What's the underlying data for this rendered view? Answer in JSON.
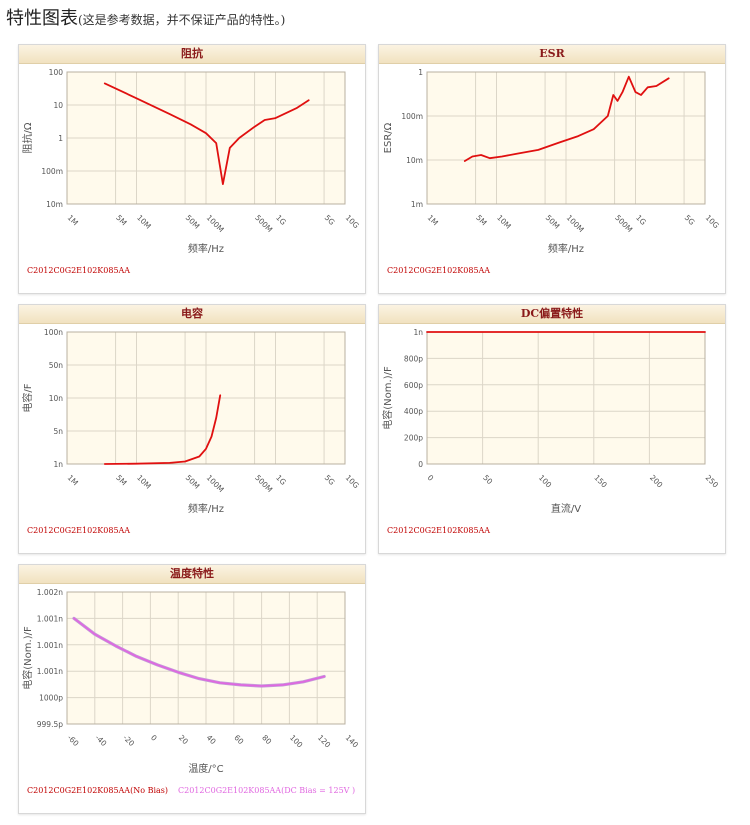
{
  "page": {
    "title": "特性图表",
    "subtitle": "(这是参考数据，并不保证产品的特性。)"
  },
  "colors": {
    "curve": "#e01010",
    "curve2": "#e066e0",
    "plot_bg": "#fffaec",
    "grid": "#dcd6c8",
    "header_text": "#8a1a1a"
  },
  "panels": [
    {
      "title": "阻抗",
      "part": "C2012C0G2E102K085AA"
    },
    {
      "title": "ESR",
      "part": "C2012C0G2E102K085AA"
    },
    {
      "title": "电容",
      "part": "C2012C0G2E102K085AA"
    },
    {
      "title": "DC偏置特性",
      "part": "C2012C0G2E102K085AA"
    },
    {
      "title": "温度特性",
      "part": "C2012C0G2E102K085AA(No Bias)",
      "part2": "C2012C0G2E102K085AA(DC Bias = 125V )"
    }
  ],
  "chart_data": [
    {
      "type": "line",
      "title": "阻抗",
      "xlabel": "频率/Hz",
      "ylabel": "阻抗/Ω",
      "x_scale": "log",
      "y_scale": "log",
      "xlim": [
        1000000,
        10000000000
      ],
      "ylim": [
        0.01,
        100
      ],
      "x_ticks": [
        "1M",
        "5M",
        "10M",
        "50M",
        "100M",
        "500M",
        "1G",
        "5G",
        "10G"
      ],
      "y_ticks": [
        "100",
        "10",
        "1",
        "100m",
        "10m"
      ],
      "series": [
        {
          "x": [
            3500000.0,
            10000000.0,
            30000000.0,
            60000000.0,
            100000000.0,
            140000000.0,
            175000000.0,
            220000000.0,
            300000000.0,
            500000000.0,
            700000000.0,
            1000000000.0,
            2000000000.0,
            3000000000.0
          ],
          "y": [
            45,
            16,
            5.3,
            2.6,
            1.4,
            0.7,
            0.04,
            0.5,
            1.0,
            2.2,
            3.5,
            4.0,
            8.0,
            14
          ]
        }
      ]
    },
    {
      "type": "line",
      "title": "ESR",
      "xlabel": "频率/Hz",
      "ylabel": "ESR/Ω",
      "x_scale": "log",
      "y_scale": "log",
      "xlim": [
        1000000,
        10000000000
      ],
      "ylim": [
        0.001,
        1
      ],
      "x_ticks": [
        "1M",
        "5M",
        "10M",
        "50M",
        "100M",
        "500M",
        "1G",
        "5G",
        "10G"
      ],
      "y_ticks": [
        "1",
        "100m",
        "10m",
        "1m"
      ],
      "series": [
        {
          "x": [
            3500000.0,
            4500000.0,
            6000000.0,
            8000000.0,
            12000000.0,
            20000000.0,
            40000000.0,
            80000000.0,
            150000000.0,
            250000000.0,
            400000000.0,
            480000000.0,
            550000000.0,
            650000000.0,
            800000000.0,
            1000000000.0,
            1200000000.0,
            1500000000.0,
            2000000000.0,
            3000000000.0
          ],
          "y": [
            0.0095,
            0.012,
            0.013,
            0.011,
            0.012,
            0.014,
            0.017,
            0.025,
            0.035,
            0.05,
            0.1,
            0.3,
            0.22,
            0.35,
            0.78,
            0.35,
            0.3,
            0.45,
            0.48,
            0.72
          ]
        }
      ]
    },
    {
      "type": "line",
      "title": "电容",
      "xlabel": "频率/Hz",
      "ylabel": "电容/F",
      "x_scale": "log",
      "y_scale": "log",
      "xlim": [
        1000000,
        10000000000
      ],
      "ylim": [
        1e-09,
        1e-07
      ],
      "x_ticks": [
        "1M",
        "5M",
        "10M",
        "50M",
        "100M",
        "500M",
        "1G",
        "5G",
        "10G"
      ],
      "y_ticks": [
        "100n",
        "50n",
        "10n",
        "5n",
        "1n"
      ],
      "series": [
        {
          "x": [
            3500000.0,
            10000000.0,
            30000000.0,
            50000000.0,
            80000000.0,
            100000000.0,
            120000000.0,
            140000000.0,
            160000000.0
          ],
          "y": [
            1e-09,
            1.01e-09,
            1.04e-09,
            1.09e-09,
            1.3e-09,
            1.7e-09,
            2.6e-09,
            5e-09,
            1.1e-08
          ]
        }
      ]
    },
    {
      "type": "line",
      "title": "DC偏置特性",
      "xlabel": "直流/V",
      "ylabel": "电容(Nom.)/F",
      "xlim": [
        0,
        250
      ],
      "ylim": [
        0,
        1e-09
      ],
      "x_ticks": [
        "0",
        "50",
        "100",
        "150",
        "200",
        "250"
      ],
      "y_ticks": [
        "1n",
        "800p",
        "600p",
        "400p",
        "200p",
        "0"
      ],
      "series": [
        {
          "x": [
            0,
            250
          ],
          "y": [
            1e-09,
            1e-09
          ]
        }
      ]
    },
    {
      "type": "line",
      "title": "温度特性",
      "xlabel": "温度/°C",
      "ylabel": "电容(Nom.)/F",
      "xlim": [
        -60,
        140
      ],
      "ylim": [
        9.995e-10,
        1.002e-09
      ],
      "x_ticks": [
        "-60",
        "-40",
        "-20",
        "0",
        "20",
        "40",
        "60",
        "80",
        "100",
        "120",
        "140"
      ],
      "y_ticks": [
        "1.002n",
        "1.001n",
        "1.001n",
        "1.001n",
        "1000p",
        "999.5p"
      ],
      "series": [
        {
          "name": "C2012C0G2E102K085AA(No Bias)",
          "x": [
            -55,
            -40,
            -25,
            -10,
            5,
            20,
            35,
            50,
            65,
            80,
            95,
            110,
            125
          ],
          "y": [
            1.0015e-09,
            1.0012e-09,
            1.00098e-09,
            1.00078e-09,
            1.00062e-09,
            1.00048e-09,
            1.00036e-09,
            1.00028e-09,
            1.00024e-09,
            1.00022e-09,
            1.00024e-09,
            1.0003e-09,
            1.0004e-09
          ]
        },
        {
          "name": "C2012C0G2E102K085AA(DC Bias = 125V )",
          "x": [
            -55,
            -40,
            -25,
            -10,
            5,
            20,
            35,
            50,
            65,
            80,
            95,
            110,
            125
          ],
          "y": [
            1.0015e-09,
            1.0012e-09,
            1.00098e-09,
            1.00078e-09,
            1.00062e-09,
            1.00048e-09,
            1.00036e-09,
            1.00028e-09,
            1.00024e-09,
            1.00022e-09,
            1.00024e-09,
            1.0003e-09,
            1.0004e-09
          ]
        }
      ]
    }
  ]
}
